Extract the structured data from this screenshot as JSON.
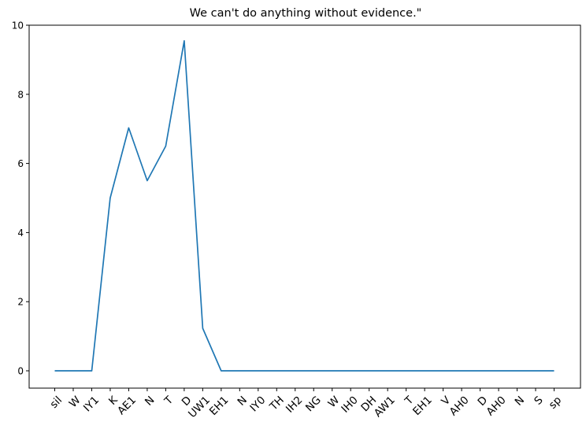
{
  "chart_data": {
    "type": "line",
    "title": "We can't do anything without evidence.\"",
    "xlabel": "",
    "ylabel": "",
    "categories": [
      "sil",
      "W",
      "IY1",
      "K",
      "AE1",
      "N",
      "T",
      "D",
      "UW1",
      "EH1",
      "N",
      "IY0",
      "TH",
      "IH2",
      "NG",
      "W",
      "IH0",
      "DH",
      "AW1",
      "T",
      "EH1",
      "V",
      "AH0",
      "D",
      "AH0",
      "N",
      "S",
      "sp"
    ],
    "series": [
      {
        "color": "#1f77b4",
        "values": [
          0,
          0,
          0,
          5.0,
          7.03,
          5.5,
          6.5,
          9.55,
          1.23,
          0,
          0,
          0,
          0,
          0,
          0,
          0,
          0,
          0,
          0,
          0,
          0,
          0,
          0,
          0,
          0,
          0,
          0,
          0
        ]
      }
    ],
    "ylim": [
      -0.45,
      10
    ],
    "yticks": [
      0,
      2,
      4,
      6,
      8,
      10
    ],
    "grid": false,
    "legend": "none"
  }
}
